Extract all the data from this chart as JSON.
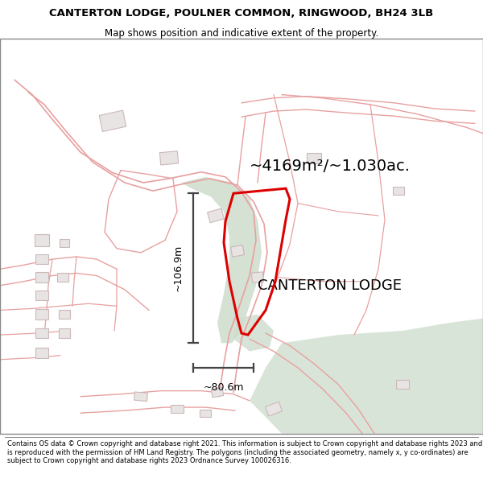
{
  "title_line1": "CANTERTON LODGE, POULNER COMMON, RINGWOOD, BH24 3LB",
  "title_line2": "Map shows position and indicative extent of the property.",
  "property_label": "CANTERTON LODGE",
  "area_label": "~4169m²/~1.030ac.",
  "width_label": "~80.6m",
  "height_label": "~106.9m",
  "copyright_text": "Contains OS data © Crown copyright and database right 2021. This information is subject to Crown copyright and database rights 2023 and is reproduced with the permission of HM Land Registry. The polygons (including the associated geometry, namely x, y co-ordinates) are subject to Crown copyright and database rights 2023 Ordnance Survey 100026316.",
  "property_poly_color": "#dd0000",
  "green_color": "#cddccc",
  "road_color": "#f0c0c0",
  "road_outline_color": "#e8a0a0",
  "building_fill": "#e8e4e4",
  "building_edge": "#ccb8b8",
  "measure_color": "#444444",
  "text_color": "#000000",
  "title_fontsize": 9.5,
  "subtitle_fontsize": 8.5,
  "area_fontsize": 14,
  "label_fontsize": 13,
  "measure_fontsize": 9,
  "copyright_fontsize": 6.0
}
